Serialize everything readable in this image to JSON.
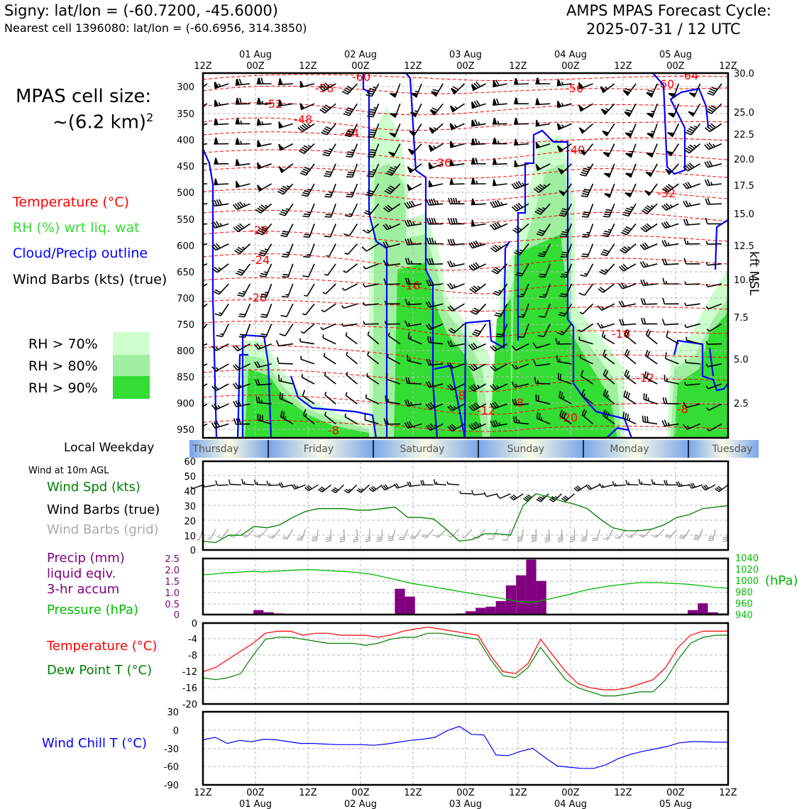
{
  "header": {
    "location": "Signy: lat/lon = (-60.7200, -45.6000)",
    "nearest_cell": "Nearest cell 1396080: lat/lon = (-60.6956, 314.3850)",
    "cycle_line1": "AMPS MPAS Forecast Cycle:",
    "cycle_line2": "2025-07-31 / 12 UTC",
    "cell_size_line1": "MPAS cell size:",
    "cell_size_line2": "~(6.2 km)",
    "cell_size_exp": "2"
  },
  "legend": {
    "temperature": "Temperature (°C)",
    "rh": "RH (%) wrt liq. wat",
    "cloud": "Cloud/Precip outline",
    "wind": "Wind Barbs (kts) (true)",
    "rh70": "RH > 70%",
    "rh80": "RH > 80%",
    "rh90": "RH > 90%"
  },
  "colors": {
    "temperature": "#ff0000",
    "rh_label": "#33dd33",
    "cloud": "#0000ff",
    "rh70": "#ccffcc",
    "rh80": "#a0eea0",
    "rh90": "#33dd33",
    "dewpoint": "#008000",
    "precip": "#800080",
    "pressure": "#00bb00",
    "windchill": "#0000ff",
    "wind_grid": "#aaaaaa"
  },
  "time_axis": {
    "tick_labels": [
      "12Z",
      "00Z",
      "12Z",
      "00Z",
      "12Z",
      "00Z",
      "12Z",
      "00Z",
      "12Z",
      "00Z",
      "12Z"
    ],
    "date_labels": [
      "01 Aug",
      "02 Aug",
      "03 Aug",
      "04 Aug",
      "05 Aug"
    ],
    "local_weekday_label": "Local Weekday",
    "weekdays": [
      "Thursday",
      "Friday",
      "Saturday",
      "Sunday",
      "Monday",
      "Tuesday"
    ]
  },
  "chart_data": [
    {
      "type": "heatmap",
      "name": "profile",
      "ylabel_right": "kft MSL",
      "pressure_ticks": [
        "300",
        "350",
        "400",
        "450",
        "500",
        "550",
        "600",
        "650",
        "700",
        "750",
        "800",
        "850",
        "900",
        "950"
      ],
      "height_ticks": [
        "30.0",
        "25.0",
        "22.5",
        "20.0",
        "17.5",
        "15.0",
        "12.5",
        "10.0",
        "7.5",
        "5.0",
        "2.5"
      ],
      "isotherm_labels": [
        "-60",
        "-56",
        "-52",
        "-48",
        "-44",
        "-40",
        "-36",
        "-32",
        "-28",
        "-24",
        "-20",
        "-16",
        "-16",
        "-12",
        "-12",
        "-8",
        "-8",
        "-8",
        "-8",
        "-20",
        "-56",
        "-60",
        "-64"
      ]
    },
    {
      "type": "line",
      "name": "wind",
      "title": "Wind at 10m AGL",
      "series_labels": [
        "Wind Spd (kts)",
        "Wind Barbs (true)",
        "Wind Barbs (grid)"
      ],
      "ylim": [
        0,
        60
      ],
      "yticks": [
        "0",
        "10",
        "20",
        "30",
        "40",
        "50",
        "60"
      ],
      "speed": [
        6,
        5,
        10,
        10,
        16,
        15,
        17,
        22,
        26,
        28,
        28,
        28,
        27,
        27,
        28,
        29,
        22,
        22,
        21,
        14,
        6,
        7,
        11,
        11,
        10,
        30,
        38,
        36,
        33,
        31,
        28,
        21,
        15,
        13,
        13,
        14,
        17,
        22,
        24,
        28,
        29,
        30
      ]
    },
    {
      "type": "bar",
      "name": "precip",
      "series_labels": [
        "Precip (mm)",
        "liquid eqiv.",
        "3-hr accum",
        "Pressure (hPa)"
      ],
      "left_ticks": [
        "0",
        "0.5",
        "1.0",
        "1.5",
        "2.0",
        "2.5"
      ],
      "right_ticks": [
        "940",
        "960",
        "980",
        "1000",
        "1020",
        "1040"
      ],
      "right_label": "(hPa)",
      "ylim": [
        0,
        2.5
      ],
      "pressure_lim": [
        940,
        1040
      ],
      "precip": [
        0,
        0,
        0,
        0,
        0,
        0.2,
        0.1,
        0.05,
        0.03,
        0,
        0,
        0,
        0,
        0,
        0,
        0,
        0,
        0,
        0,
        1.15,
        0.8,
        0,
        0,
        0,
        0,
        0.05,
        0.15,
        0.3,
        0.35,
        0.6,
        1.3,
        1.75,
        2.45,
        1.5,
        0,
        0,
        0,
        0,
        0,
        0,
        0,
        0,
        0,
        0,
        0,
        0,
        0,
        0,
        0.2,
        0.5,
        0.1,
        0.05
      ],
      "pressure": [
        1011,
        1012,
        1014,
        1015,
        1016,
        1017,
        1016,
        1017,
        1018,
        1019,
        1020,
        1020,
        1019,
        1018,
        1017,
        1016,
        1014,
        1012,
        1008,
        1004,
        1000,
        996,
        993,
        990,
        987,
        984,
        981,
        978,
        975,
        972,
        969,
        966,
        963,
        962,
        964,
        968,
        972,
        976,
        981,
        985,
        988,
        991,
        993,
        995,
        997,
        997,
        997,
        996,
        995,
        994,
        992,
        990,
        988,
        987
      ]
    },
    {
      "type": "line",
      "name": "temperature",
      "series_labels": [
        "Temperature (°C)",
        "Dew Point T (°C)"
      ],
      "ylim": [
        -20,
        0
      ],
      "yticks": [
        "0",
        "-4",
        "-8",
        "-12",
        "-16",
        "-20"
      ],
      "temperature": [
        -12,
        -11,
        -9,
        -7,
        -5,
        -2.5,
        -2,
        -2,
        -3,
        -2.5,
        -2.5,
        -3,
        -3,
        -3,
        -3.5,
        -3,
        -2,
        -1.5,
        -1,
        -1.5,
        -2,
        -2.5,
        -3,
        -8,
        -12,
        -12.5,
        -10,
        -4,
        -8,
        -12,
        -15,
        -16,
        -16.5,
        -16.5,
        -16,
        -15,
        -14,
        -11,
        -6,
        -3,
        -2,
        -2,
        -2
      ],
      "dewpoint": [
        -13.5,
        -14,
        -13.5,
        -12.5,
        -8,
        -4,
        -3.5,
        -3.5,
        -4,
        -4.5,
        -5,
        -5,
        -5,
        -5.5,
        -5,
        -4,
        -3.5,
        -3.5,
        -2.5,
        -2.5,
        -3,
        -3.5,
        -4,
        -9,
        -13,
        -13.5,
        -11,
        -6,
        -10,
        -14,
        -16,
        -17,
        -18,
        -18,
        -17.5,
        -17,
        -17,
        -14,
        -9,
        -5,
        -3.5,
        -3,
        -3
      ]
    },
    {
      "type": "line",
      "name": "windchill",
      "series_labels": [
        "Wind Chill T (°C)"
      ],
      "ylim": [
        -90,
        30
      ],
      "yticks": [
        "30",
        "0",
        "-30",
        "-60",
        "-90"
      ],
      "windchill": [
        -16,
        -12,
        -22,
        -17,
        -19,
        -15,
        -16,
        -19,
        -22,
        -22,
        -23,
        -24,
        -24,
        -24,
        -25,
        -23,
        -20,
        -17,
        -15,
        -12,
        -1,
        6,
        -7,
        -8,
        -41,
        -42,
        -35,
        -30,
        -45,
        -59,
        -61,
        -63,
        -63,
        -57,
        -47,
        -40,
        -35,
        -31,
        -27,
        -21,
        -19,
        -19,
        -20,
        -20
      ]
    }
  ]
}
